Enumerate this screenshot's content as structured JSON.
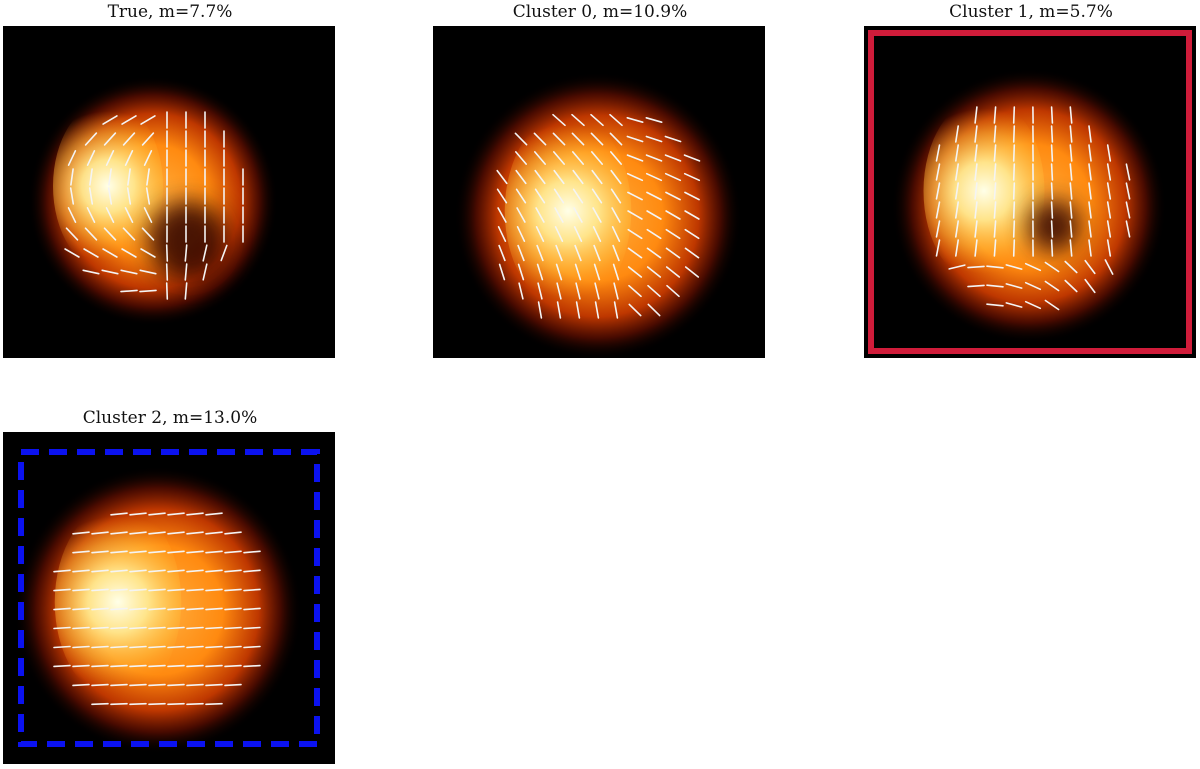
{
  "panels": [
    {
      "id": "true",
      "title": "True, m=7.7%",
      "frame": "none",
      "pattern": "crescent-vertical"
    },
    {
      "id": "cluster-0",
      "title": "Cluster 0, m=10.9%",
      "frame": "none",
      "pattern": "disk-diagonal"
    },
    {
      "id": "cluster-1",
      "title": "Cluster 1, m=5.7%",
      "frame": "solid",
      "frame_color": "#d01c3a",
      "pattern": "disk-vertical"
    },
    {
      "id": "cluster-2",
      "title": "Cluster 2, m=13.0%",
      "frame": "dashed",
      "frame_color": "#0b12f0",
      "pattern": "disk-horizontal"
    }
  ]
}
